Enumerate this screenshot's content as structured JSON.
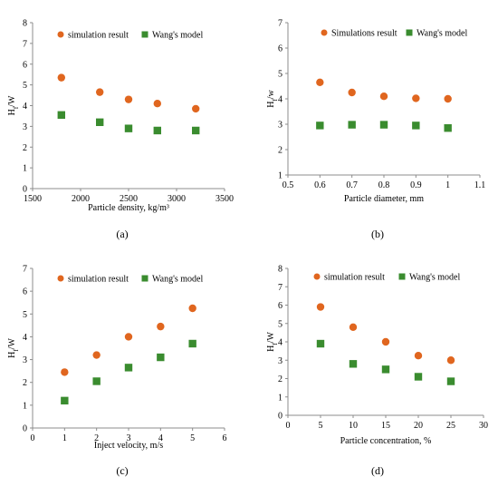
{
  "chart_data": [
    {
      "type": "scatter",
      "panel_label": "(a)",
      "xlabel": "Particle density,  kg/m³",
      "ylabel": "H",
      "ylabel_sub": "f",
      "ylabel_tail": "/W",
      "xlim": [
        1500,
        3500
      ],
      "ylim": [
        0,
        8
      ],
      "xticks": [
        "1500",
        "2000",
        "2500",
        "3000",
        "3500"
      ],
      "yticks": [
        "0",
        "1",
        "2",
        "3",
        "4",
        "5",
        "6",
        "7",
        "8"
      ],
      "legend_placement": "top",
      "series": [
        {
          "name": "simulation result",
          "marker": "circle",
          "color": "#E0661F",
          "x": [
            1800,
            2200,
            2500,
            2800,
            3200
          ],
          "y": [
            5.35,
            4.65,
            4.3,
            4.1,
            3.85
          ]
        },
        {
          "name": "Wang's model",
          "marker": "square",
          "color": "#3A8C2F",
          "x": [
            1800,
            2200,
            2500,
            2800,
            3200
          ],
          "y": [
            3.55,
            3.2,
            2.9,
            2.8,
            2.8
          ]
        }
      ]
    },
    {
      "type": "scatter",
      "panel_label": "(b)",
      "xlabel": "Particle diameter, mm",
      "ylabel": "H",
      "ylabel_sub": "f",
      "ylabel_tail": "/w",
      "xlim": [
        0.5,
        1.1
      ],
      "ylim": [
        1,
        7
      ],
      "xticks": [
        "0.5",
        "0.6",
        "0.7",
        "0.8",
        "0.9",
        "1",
        "1.1"
      ],
      "yticks": [
        "1",
        "2",
        "3",
        "4",
        "5",
        "6",
        "7"
      ],
      "legend_placement": "top",
      "series": [
        {
          "name": "Simulations result",
          "marker": "circle",
          "color": "#E0661F",
          "x": [
            0.6,
            0.7,
            0.8,
            0.9,
            1.0
          ],
          "y": [
            4.65,
            4.25,
            4.1,
            4.02,
            4.0
          ]
        },
        {
          "name": "Wang's model",
          "marker": "square",
          "color": "#3A8C2F",
          "x": [
            0.6,
            0.7,
            0.8,
            0.9,
            1.0
          ],
          "y": [
            2.95,
            2.98,
            2.98,
            2.95,
            2.85
          ]
        }
      ]
    },
    {
      "type": "scatter",
      "panel_label": "(c)",
      "xlabel": "Inject velocity,  m/s",
      "ylabel": "H",
      "ylabel_sub": "f",
      "ylabel_tail": "/W",
      "xlim": [
        0,
        6
      ],
      "ylim": [
        0,
        7
      ],
      "xticks": [
        "0",
        "1",
        "2",
        "3",
        "4",
        "5",
        "6"
      ],
      "yticks": [
        "0",
        "1",
        "2",
        "3",
        "4",
        "5",
        "6",
        "7"
      ],
      "legend_placement": "top",
      "series": [
        {
          "name": "simulation result",
          "marker": "circle",
          "color": "#E0661F",
          "x": [
            1,
            2,
            3,
            4,
            5
          ],
          "y": [
            2.45,
            3.2,
            4.0,
            4.45,
            5.25
          ]
        },
        {
          "name": "Wang's model",
          "marker": "square",
          "color": "#3A8C2F",
          "x": [
            1,
            2,
            3,
            4,
            5
          ],
          "y": [
            1.2,
            2.05,
            2.65,
            3.1,
            3.7
          ]
        }
      ]
    },
    {
      "type": "scatter",
      "panel_label": "(d)",
      "xlabel": "Particle concentration,  %",
      "ylabel": "H",
      "ylabel_sub": "f",
      "ylabel_tail": "/W",
      "xlim": [
        0,
        30
      ],
      "ylim": [
        0,
        8
      ],
      "xticks": [
        "0",
        "5",
        "10",
        "15",
        "20",
        "25",
        "30"
      ],
      "yticks": [
        "0",
        "1",
        "2",
        "3",
        "4",
        "5",
        "6",
        "7",
        "8"
      ],
      "legend_placement": "top",
      "series": [
        {
          "name": "simulation result",
          "marker": "circle",
          "color": "#E0661F",
          "x": [
            5,
            10,
            15,
            20,
            25
          ],
          "y": [
            5.9,
            4.8,
            4.0,
            3.25,
            3.0
          ]
        },
        {
          "name": "Wang's model",
          "marker": "square",
          "color": "#3A8C2F",
          "x": [
            5,
            10,
            15,
            20,
            25
          ],
          "y": [
            3.9,
            2.8,
            2.5,
            2.1,
            1.85
          ]
        }
      ]
    }
  ]
}
